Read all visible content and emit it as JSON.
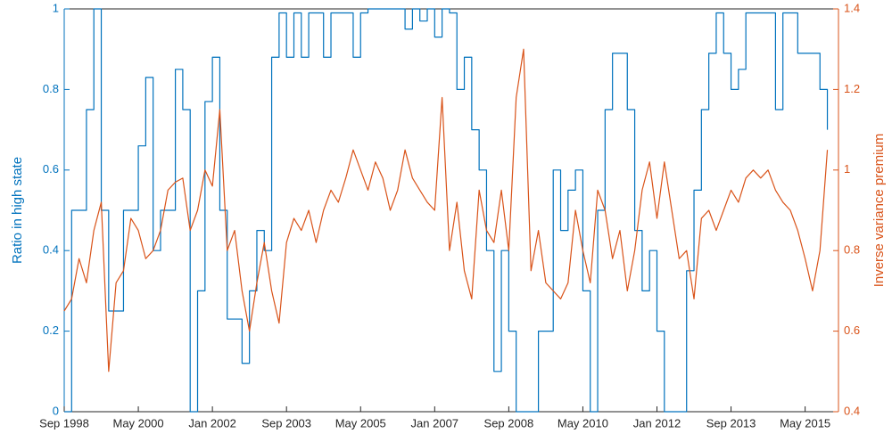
{
  "chart_data": {
    "type": "line",
    "ylabel": "Ratio in high state",
    "y2label": "Inverse variance premium",
    "x": [
      "1998-09",
      "1998-11",
      "1999-01",
      "1999-03",
      "1999-05",
      "1999-07",
      "1999-09",
      "1999-11",
      "2000-01",
      "2000-03",
      "2000-05",
      "2000-07",
      "2000-09",
      "2000-11",
      "2001-01",
      "2001-03",
      "2001-05",
      "2001-07",
      "2001-09",
      "2001-11",
      "2002-01",
      "2002-03",
      "2002-05",
      "2002-07",
      "2002-09",
      "2002-11",
      "2003-01",
      "2003-03",
      "2003-05",
      "2003-07",
      "2003-09",
      "2003-11",
      "2004-01",
      "2004-03",
      "2004-05",
      "2004-07",
      "2004-09",
      "2004-11",
      "2005-01",
      "2005-03",
      "2005-05",
      "2005-07",
      "2005-09",
      "2005-11",
      "2006-01",
      "2006-03",
      "2006-05",
      "2006-07",
      "2006-09",
      "2006-11",
      "2007-01",
      "2007-03",
      "2007-05",
      "2007-07",
      "2007-09",
      "2007-11",
      "2008-01",
      "2008-03",
      "2008-05",
      "2008-07",
      "2008-09",
      "2008-11",
      "2009-01",
      "2009-03",
      "2009-05",
      "2009-07",
      "2009-09",
      "2009-11",
      "2010-01",
      "2010-03",
      "2010-05",
      "2010-07",
      "2010-09",
      "2010-11",
      "2011-01",
      "2011-03",
      "2011-05",
      "2011-07",
      "2011-09",
      "2011-11",
      "2012-01",
      "2012-03",
      "2012-05",
      "2012-07",
      "2012-09",
      "2012-11",
      "2013-01",
      "2013-03",
      "2013-05",
      "2013-07",
      "2013-09",
      "2013-11",
      "2014-01",
      "2014-03",
      "2014-05",
      "2014-07",
      "2014-09",
      "2014-11",
      "2015-01",
      "2015-03",
      "2015-05",
      "2015-07",
      "2015-09",
      "2015-11"
    ],
    "series": [
      {
        "name": "Ratio in high state",
        "color": "#0072BD",
        "step": true,
        "values": [
          0.0,
          0.5,
          0.5,
          0.75,
          1.0,
          0.5,
          0.25,
          0.25,
          0.5,
          0.5,
          0.66,
          0.83,
          0.4,
          0.5,
          0.5,
          0.85,
          0.75,
          0.0,
          0.3,
          0.77,
          0.88,
          0.5,
          0.23,
          0.23,
          0.12,
          0.3,
          0.45,
          0.4,
          0.88,
          0.99,
          0.88,
          0.99,
          0.88,
          0.99,
          0.99,
          0.88,
          0.99,
          0.99,
          0.99,
          0.88,
          0.99,
          1.0,
          1.0,
          1.0,
          1.0,
          1.0,
          0.95,
          1.0,
          0.97,
          1.0,
          0.93,
          1.0,
          0.99,
          0.8,
          0.88,
          0.7,
          0.6,
          0.4,
          0.1,
          0.4,
          0.2,
          0.0,
          0.0,
          0.0,
          0.2,
          0.2,
          0.6,
          0.45,
          0.55,
          0.6,
          0.3,
          0.0,
          0.5,
          0.75,
          0.89,
          0.89,
          0.75,
          0.45,
          0.3,
          0.4,
          0.2,
          0.0,
          0.0,
          0.0,
          0.35,
          0.55,
          0.75,
          0.89,
          0.99,
          0.89,
          0.8,
          0.85,
          0.99,
          0.99,
          0.99,
          0.99,
          0.75,
          0.99,
          0.99,
          0.89,
          0.89,
          0.89,
          0.8,
          0.7
        ]
      },
      {
        "name": "Inverse variance premium",
        "color": "#D95319",
        "axis": "y2",
        "values": [
          0.65,
          0.68,
          0.78,
          0.72,
          0.85,
          0.92,
          0.5,
          0.72,
          0.75,
          0.88,
          0.85,
          0.78,
          0.8,
          0.85,
          0.95,
          0.97,
          0.98,
          0.85,
          0.9,
          1.0,
          0.96,
          1.15,
          0.8,
          0.85,
          0.7,
          0.6,
          0.72,
          0.82,
          0.7,
          0.62,
          0.82,
          0.88,
          0.85,
          0.9,
          0.82,
          0.9,
          0.95,
          0.92,
          0.98,
          1.05,
          1.0,
          0.95,
          1.02,
          0.98,
          0.9,
          0.95,
          1.05,
          0.98,
          0.95,
          0.92,
          0.9,
          1.18,
          0.8,
          0.92,
          0.75,
          0.68,
          0.95,
          0.85,
          0.82,
          0.95,
          0.8,
          1.18,
          1.3,
          0.75,
          0.85,
          0.72,
          0.7,
          0.68,
          0.72,
          0.9,
          0.8,
          0.72,
          0.95,
          0.9,
          0.78,
          0.85,
          0.7,
          0.8,
          0.95,
          1.02,
          0.88,
          1.02,
          0.9,
          0.78,
          0.8,
          0.68,
          0.88,
          0.9,
          0.85,
          0.9,
          0.95,
          0.92,
          0.98,
          1.0,
          0.98,
          1.0,
          0.95,
          0.92,
          0.9,
          0.85,
          0.78,
          0.7,
          0.8,
          1.05
        ]
      }
    ],
    "xlim": [
      "1998-09",
      "2016-02"
    ],
    "xticks": [
      {
        "value": "1998-09",
        "label": "Sep 1998"
      },
      {
        "value": "2000-05",
        "label": "May 2000"
      },
      {
        "value": "2002-01",
        "label": "Jan 2002"
      },
      {
        "value": "2003-09",
        "label": "Sep 2003"
      },
      {
        "value": "2005-05",
        "label": "May 2005"
      },
      {
        "value": "2007-01",
        "label": "Jan 2007"
      },
      {
        "value": "2008-09",
        "label": "Sep 2008"
      },
      {
        "value": "2010-05",
        "label": "May 2010"
      },
      {
        "value": "2012-01",
        "label": "Jan 2012"
      },
      {
        "value": "2013-09",
        "label": "Sep 2013"
      },
      {
        "value": "2015-05",
        "label": "May 2015"
      }
    ],
    "ylim": [
      0,
      1
    ],
    "yticks": [
      0,
      0.2,
      0.4,
      0.6,
      0.8,
      1
    ],
    "y2lim": [
      0.4,
      1.4
    ],
    "y2ticks": [
      0.4,
      0.6,
      0.8,
      1,
      1.2,
      1.4
    ],
    "grid": false
  }
}
